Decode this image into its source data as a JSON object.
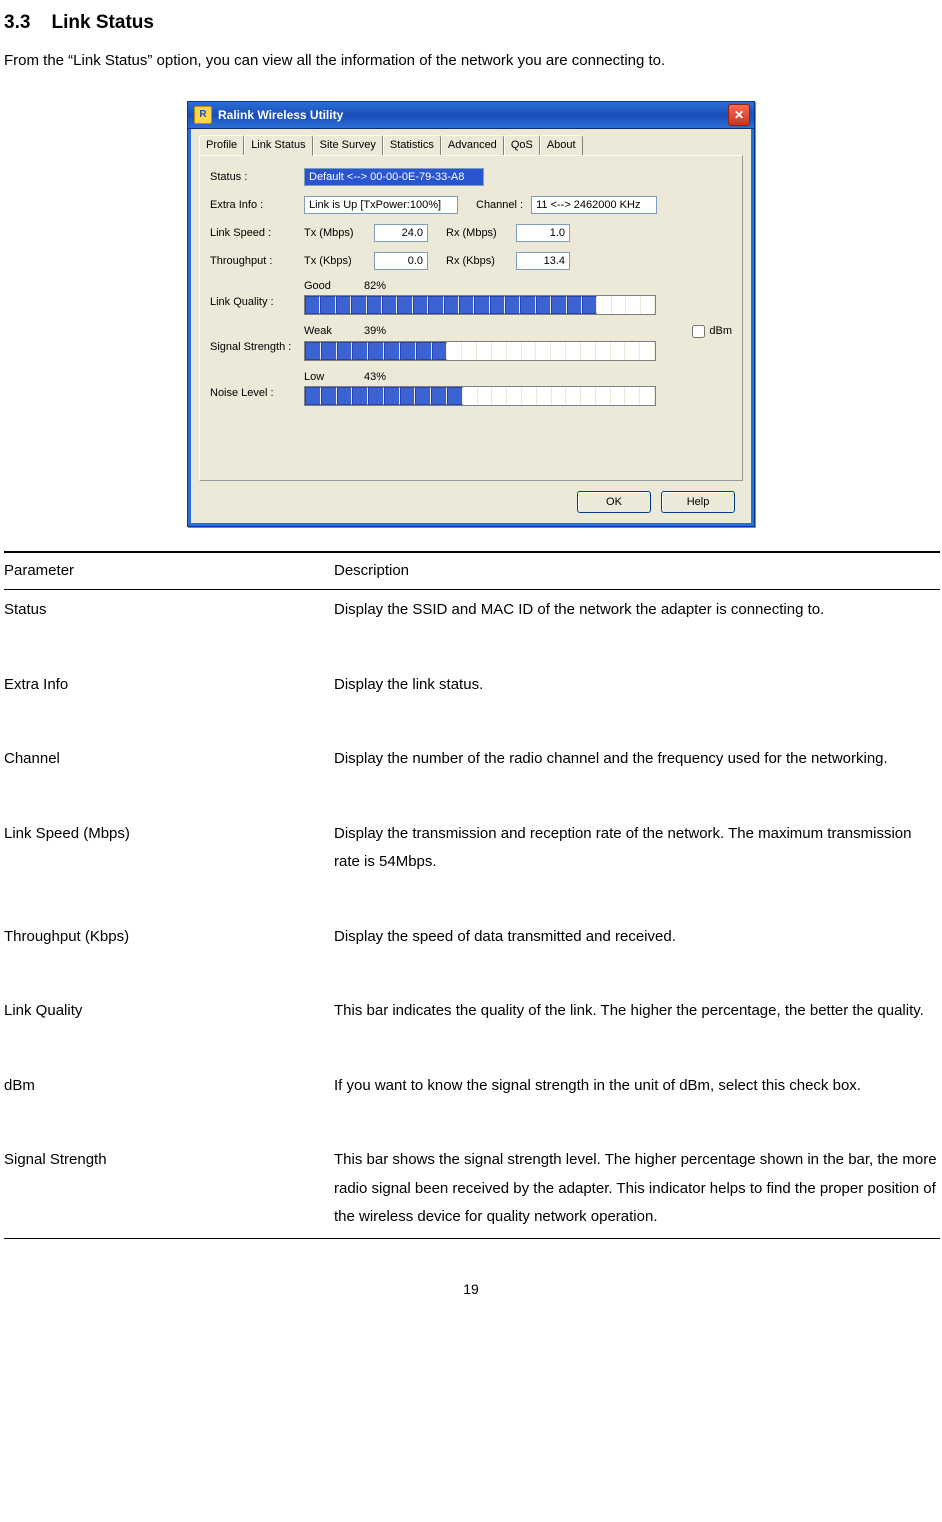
{
  "section": {
    "number": "3.3",
    "title": "Link Status"
  },
  "intro": "From the “Link Status” option, you can view all the information of the network you are connecting to.",
  "dialog": {
    "app_title": "Ralink Wireless Utility",
    "app_icon_glyph": "R",
    "close_glyph": "✕",
    "colors": {
      "titlebar_bg1": "#2a6fd6",
      "titlebar_bg2": "#1b4db8",
      "dialog_bg": "#ece9d8",
      "field_border": "#7f9db9",
      "status_bg": "#2a55d0",
      "meter_on": "#3b63d3",
      "close_bg": "#c8361f"
    },
    "tabs": [
      "Profile",
      "Link Status",
      "Site Survey",
      "Statistics",
      "Advanced",
      "QoS",
      "About"
    ],
    "active_tab": "Link Status",
    "fields": {
      "status_label": "Status :",
      "status_value": "Default <--> 00-00-0E-79-33-A8",
      "extra_label": "Extra Info :",
      "extra_value": "Link is Up [TxPower:100%]",
      "channel_label": "Channel :",
      "channel_value": "11 <--> 2462000 KHz",
      "linkspeed_label": "Link Speed :",
      "tx_mbps_label": "Tx (Mbps)",
      "tx_mbps_value": "24.0",
      "rx_mbps_label": "Rx (Mbps)",
      "rx_mbps_value": "1.0",
      "throughput_label": "Throughput :",
      "tx_kbps_label": "Tx (Kbps)",
      "tx_kbps_value": "0.0",
      "rx_kbps_label": "Rx (Kbps)",
      "rx_kbps_value": "13.4",
      "quality_label": "Link Quality :",
      "quality_word": "Good",
      "quality_pct": "82%",
      "signal_label": "Signal Strength :",
      "signal_word": "Weak",
      "signal_pct": "39%",
      "noise_label": "Noise Level :",
      "noise_word": "Low",
      "noise_pct": "43%",
      "dbm_label": "dBm",
      "ok_label": "OK",
      "help_label": "Help"
    },
    "meters": {
      "total_segments": 23,
      "quality_on": 19,
      "signal_on": 9,
      "noise_on": 10
    }
  },
  "table": {
    "header_param": "Parameter",
    "header_desc": "Description",
    "rows": [
      {
        "param": "Status",
        "desc": "Display the SSID and MAC ID of the network the adapter is connecting to."
      },
      {
        "param": "Extra Info",
        "desc": "Display the link status."
      },
      {
        "param": "Channel",
        "desc": "Display the number of the radio channel and the frequency used for the networking."
      },
      {
        "param": "Link Speed (Mbps)",
        "desc": "Display the transmission and reception rate of the network. The maximum transmission rate is 54Mbps."
      },
      {
        "param": "Throughput (Kbps)",
        "desc": "Display the speed of data transmitted and received."
      },
      {
        "param": "Link Quality",
        "desc": "This bar indicates the quality of the link. The higher the percentage, the better the quality."
      },
      {
        "param": "dBm",
        "desc": "If you want to know the signal strength in the unit of dBm, select this check box."
      },
      {
        "param": "Signal Strength",
        "desc": "This bar shows the signal strength level. The higher percentage shown in the bar, the more radio signal been received by the adapter. This indicator helps to find the proper position of the wireless device for quality network operation."
      }
    ]
  },
  "page_number": "19"
}
